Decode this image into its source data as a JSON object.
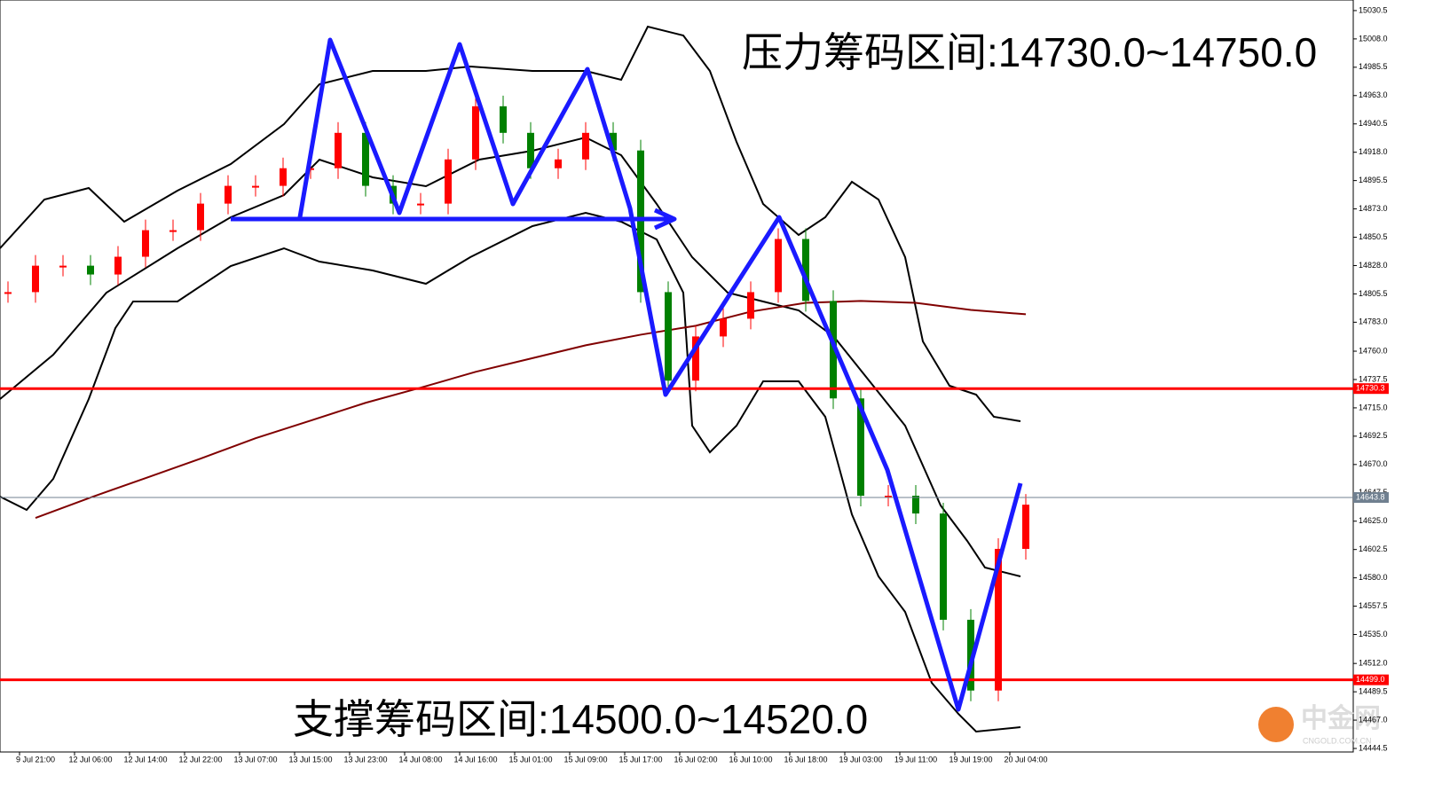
{
  "chart_data": {
    "type": "candlestick",
    "annotations": [
      "压力筹码区间:14730.0~14750.0",
      "支撑筹码区间:14500.0~14520.0"
    ],
    "watermark": [
      "中金网",
      "CNGOLD.COM.CN"
    ],
    "categories": [
      "9 Jul 21:00",
      "12 Jul 06:00",
      "12 Jul 14:00",
      "12 Jul 22:00",
      "13 Jul 07:00",
      "13 Jul 15:00",
      "13 Jul 23:00",
      "14 Jul 08:00",
      "14 Jul 16:00",
      "15 Jul 01:00",
      "15 Jul 09:00",
      "15 Jul 17:00",
      "16 Jul 02:00",
      "16 Jul 10:00",
      "16 Jul 18:00",
      "19 Jul 03:00",
      "19 Jul 11:00",
      "19 Jul 19:00",
      "20 Jul 04:00"
    ],
    "closes": [
      14806.9,
      14827.9,
      14827.9,
      14820.9,
      14835.0,
      14856.1,
      14856.1,
      14877.2,
      14891.3,
      14891.3,
      14905.3,
      14905.3,
      14933.4,
      14891.3,
      14877.2,
      14877.2,
      14912.3,
      14954.5,
      14933.4,
      14905.3,
      14912.3,
      14933.4,
      14919.4,
      14806.9,
      14736.6,
      14771.7,
      14785.8,
      14806.9,
      14849.1,
      14799.9,
      14722.5,
      14645.2,
      14645.2,
      14631.1,
      14546.7,
      14490.5,
      14603.0,
      14638.1
    ],
    "up_color": "#ff0000",
    "down_color": "#008000",
    "ma": [
      14627.6,
      14643.8,
      14659.2,
      14674.7,
      14690.9,
      14704.9,
      14719.0,
      14731.0,
      14743.6,
      14754.1,
      14764.7,
      14773.1,
      14780.2,
      14791.4,
      14798.4,
      14799.9,
      14798.4,
      14792.8,
      14789.3
    ],
    "ma_color": "#800000",
    "ylim": [
      14441.7,
      15038.9
    ],
    "yticks": [
      {
        "value": 15030.5,
        "label": "15030.5"
      },
      {
        "value": 15008.0,
        "label": "15008.0"
      },
      {
        "value": 14985.5,
        "label": "14985.5"
      },
      {
        "value": 14963.0,
        "label": "14963.0"
      },
      {
        "value": 14940.5,
        "label": "14940.5"
      },
      {
        "value": 14918.0,
        "label": "14918.0"
      },
      {
        "value": 14895.5,
        "label": "14895.5"
      },
      {
        "value": 14873.0,
        "label": "14873.0"
      },
      {
        "value": 14850.5,
        "label": "14850.5"
      },
      {
        "value": 14828.0,
        "label": "14828.0"
      },
      {
        "value": 14805.5,
        "label": "14805.5"
      },
      {
        "value": 14783.0,
        "label": "14783.0"
      },
      {
        "value": 14760.0,
        "label": "14760.0"
      },
      {
        "value": 14737.5,
        "label": "14737.5"
      },
      {
        "value": 14715.0,
        "label": "14715.0"
      },
      {
        "value": 14692.5,
        "label": "14692.5"
      },
      {
        "value": 14670.0,
        "label": "14670.0"
      },
      {
        "value": 14647.5,
        "label": "14647.5"
      },
      {
        "value": 14625.0,
        "label": "14625.0"
      },
      {
        "value": 14602.5,
        "label": "14602.5"
      },
      {
        "value": 14580.0,
        "label": "14580.0"
      },
      {
        "value": 14557.5,
        "label": "14557.5"
      },
      {
        "value": 14535.0,
        "label": "14535.0"
      },
      {
        "value": 14512.0,
        "label": "14512.0"
      },
      {
        "value": 14489.5,
        "label": "14489.5"
      },
      {
        "value": 14467.0,
        "label": "14467.0"
      },
      {
        "value": 14444.5,
        "label": "14444.5"
      }
    ],
    "levels": [
      {
        "value": 14730.3,
        "label": "14730.3",
        "color": "#ff0000"
      },
      {
        "value": 14643.8,
        "label": "14643.8",
        "color": "#708090"
      },
      {
        "value": 14499.0,
        "label": "14499.0",
        "color": "#ff0000"
      }
    ]
  }
}
